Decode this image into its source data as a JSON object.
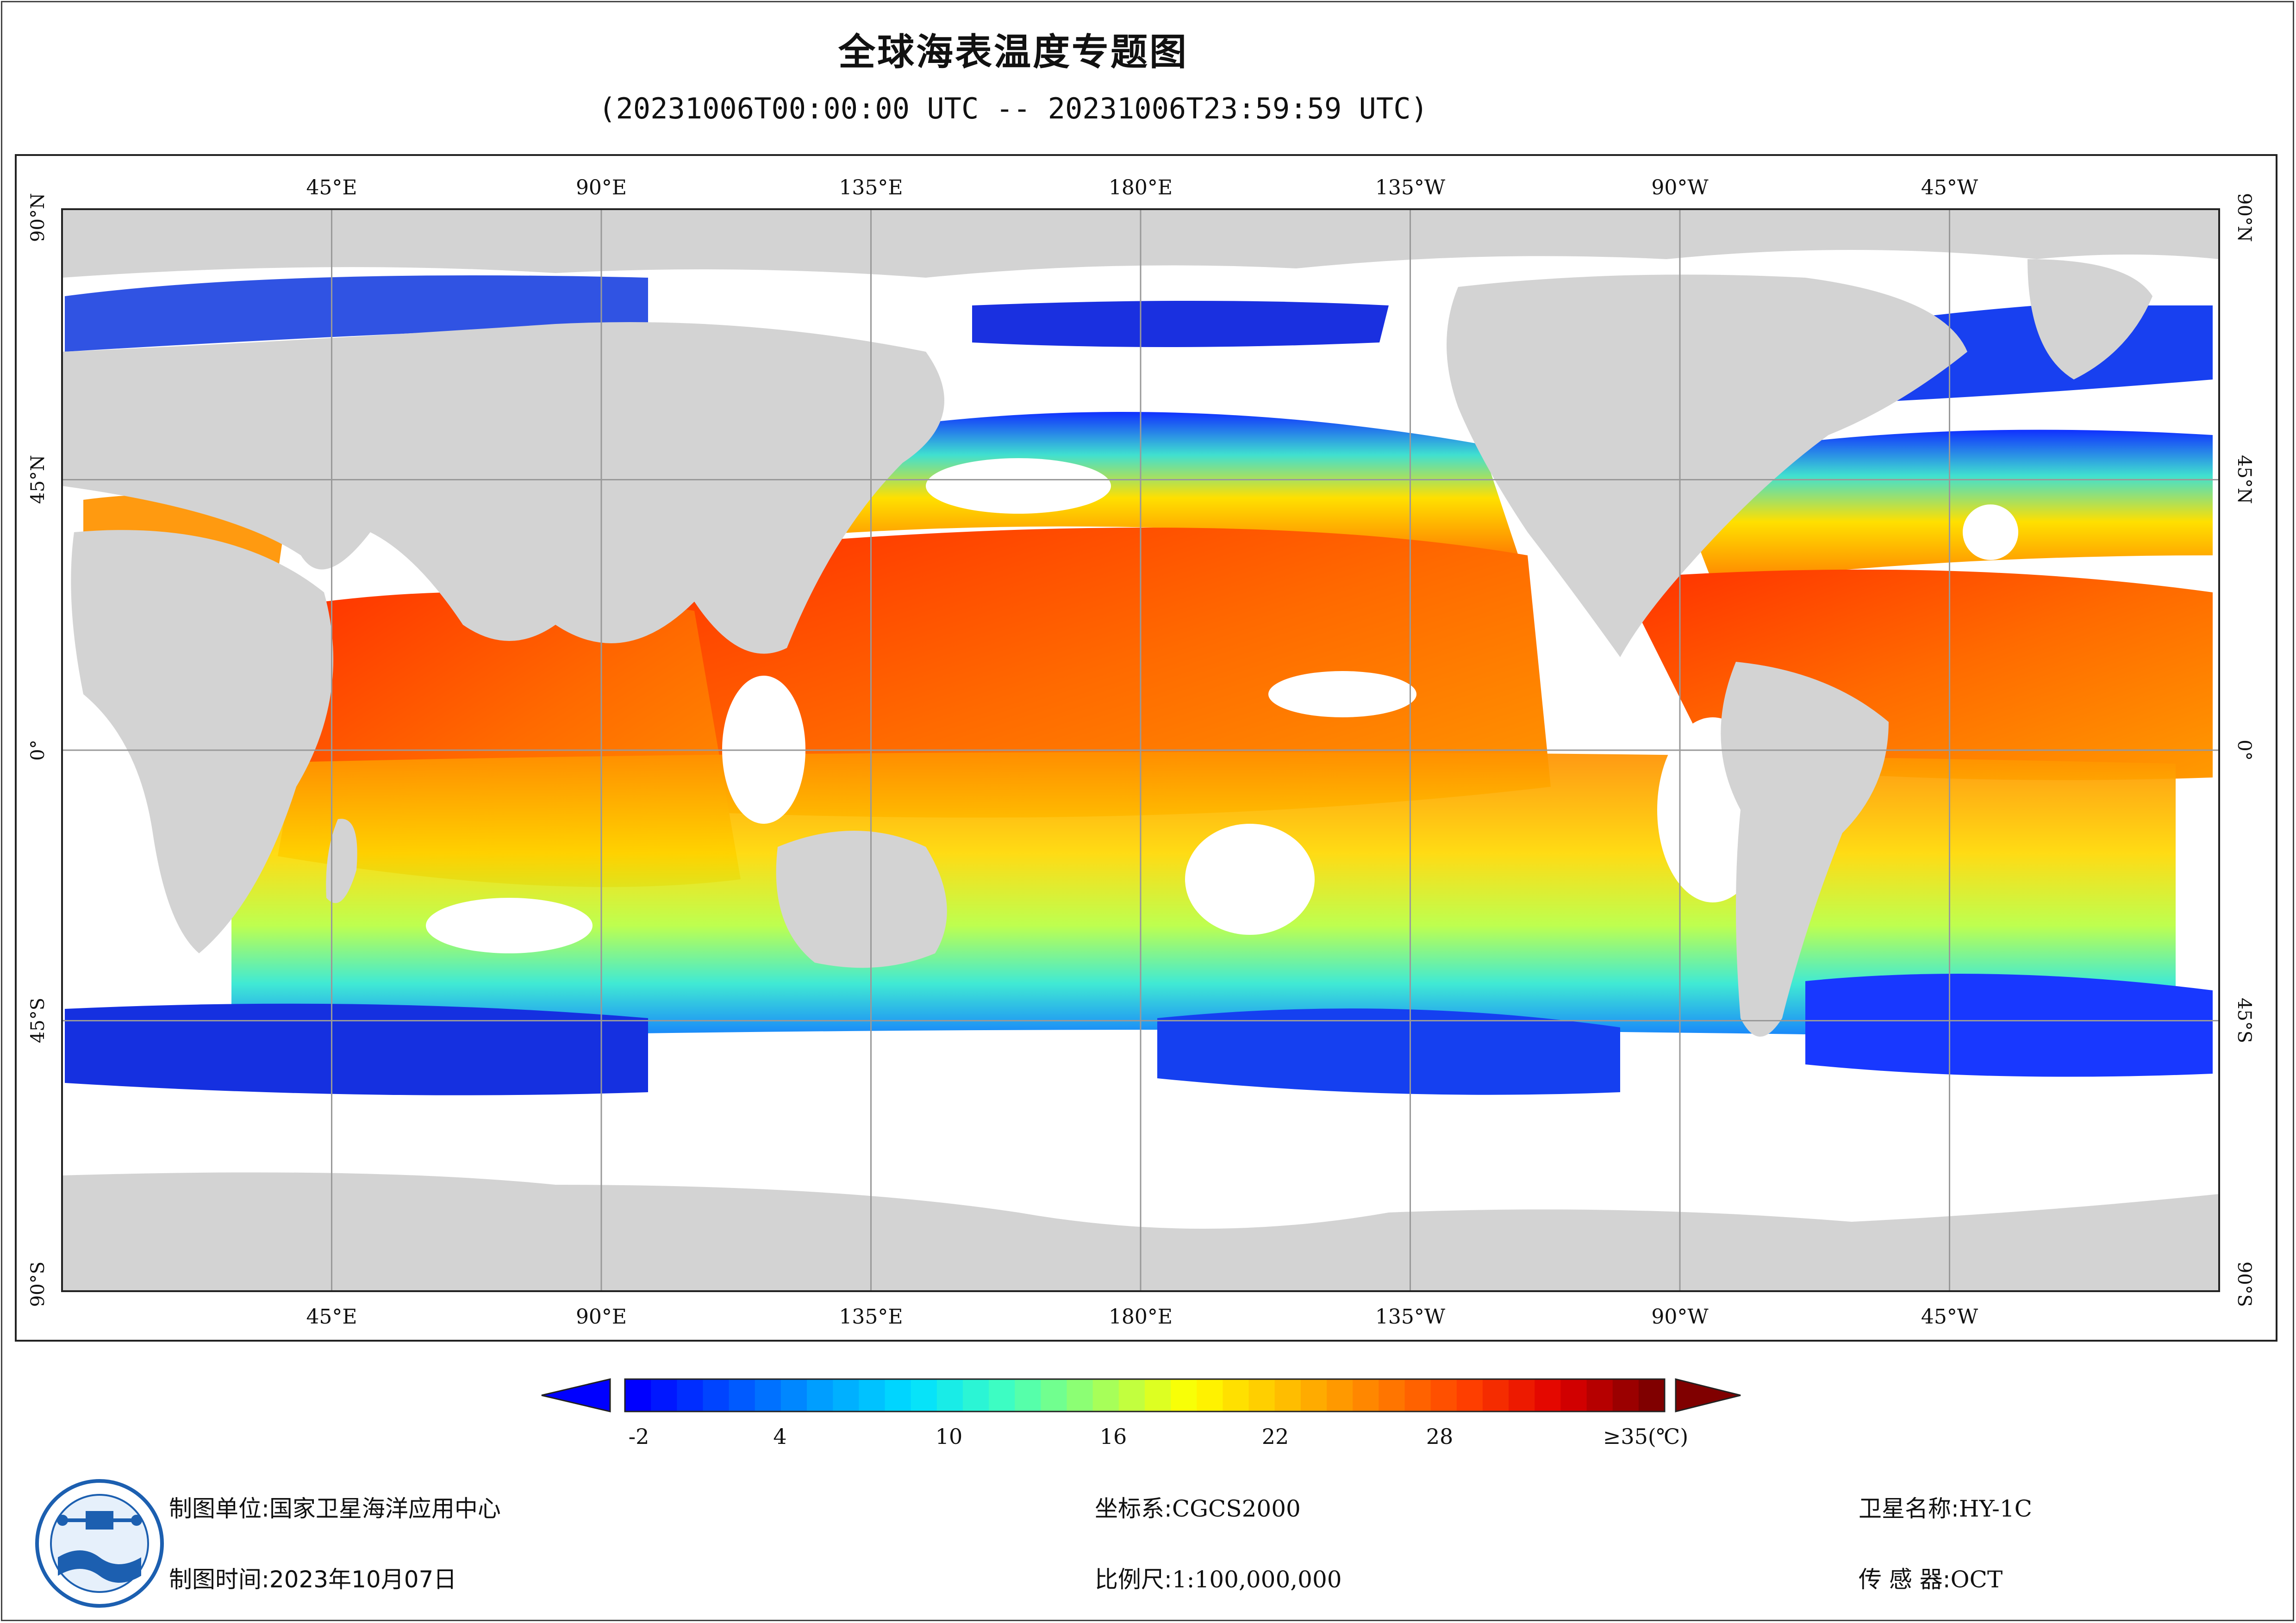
{
  "title": "全球海表温度专题图",
  "subtitle": "(20231006T00:00:00 UTC -- 20231006T23:59:59 UTC)",
  "map": {
    "top_lon_labels": [
      "45°E",
      "90°E",
      "135°E",
      "180°E",
      "135°W",
      "90°W",
      "45°W"
    ],
    "bottom_lon_labels": [
      "45°E",
      "90°E",
      "135°E",
      "180°E",
      "135°W",
      "90°W",
      "45°W"
    ],
    "lat_labels": [
      "90°N",
      "45°N",
      "0°",
      "45°S",
      "90°S"
    ],
    "land_color": "#d3d3d3",
    "ocean_background": "#ffffff"
  },
  "colorbar": {
    "tick_labels": [
      "-2",
      "4",
      "10",
      "16",
      "22",
      "28",
      "≥35(℃)"
    ],
    "colors": [
      "#0000ff",
      "#0050ff",
      "#00a0ff",
      "#00e0ff",
      "#40ffc0",
      "#a0ff60",
      "#ffff00",
      "#ffc000",
      "#ff8000",
      "#ff4000",
      "#e00000",
      "#800000"
    ],
    "min_arrow_color": "#0000ff",
    "max_arrow_color": "#800000"
  },
  "footer": {
    "producer_label": "制图单位:",
    "producer_value": "国家卫星海洋应用中心",
    "date_label": "制图时间:",
    "date_value": "2023年10月07日",
    "crs_label": "坐标系:",
    "crs_value": "CGCS2000",
    "scale_label": "比例尺:",
    "scale_value": "1:100,000,000",
    "satellite_label": "卫星名称:",
    "satellite_value": "HY-1C",
    "sensor_label": "传 感 器:",
    "sensor_value": "OCT"
  }
}
